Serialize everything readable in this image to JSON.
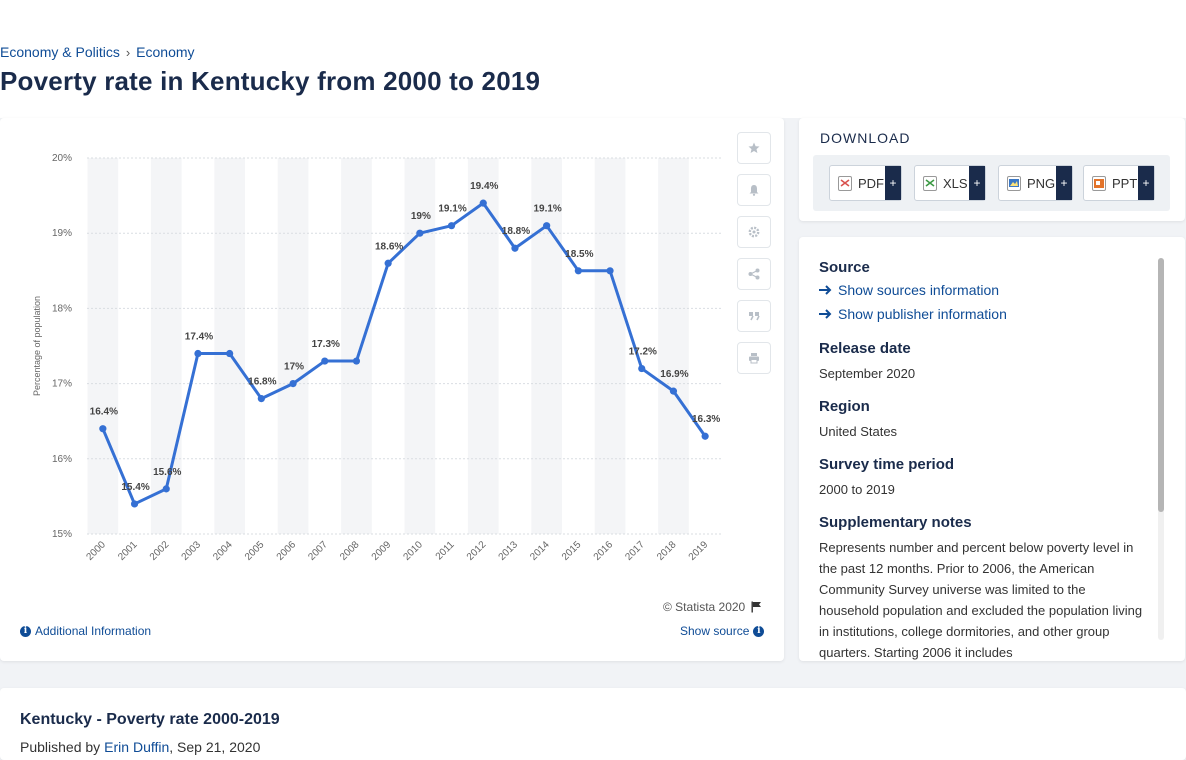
{
  "breadcrumb": [
    "Economy & Politics",
    "Economy"
  ],
  "page_title": "Poverty rate in Kentucky from 2000 to 2019",
  "chart_data": {
    "type": "line",
    "title": "",
    "xlabel": "",
    "ylabel": "Percentage of population",
    "ylim": [
      15,
      20
    ],
    "yticks": [
      "15%",
      "16%",
      "17%",
      "18%",
      "19%",
      "20%"
    ],
    "ytick_values": [
      15,
      16,
      17,
      18,
      19,
      20
    ],
    "categories": [
      "2000",
      "2001",
      "2002",
      "2003",
      "2004",
      "2005",
      "2006",
      "2007",
      "2008",
      "2009",
      "2010",
      "2011",
      "2012",
      "2013",
      "2014",
      "2015",
      "2016",
      "2017",
      "2018",
      "2019"
    ],
    "values": [
      16.4,
      15.4,
      15.6,
      17.4,
      17.4,
      16.8,
      17.0,
      17.3,
      17.3,
      18.6,
      19.0,
      19.1,
      19.4,
      18.8,
      19.1,
      18.5,
      18.5,
      17.2,
      16.9,
      16.3
    ],
    "data_labels": [
      "16.4%",
      "15.4%",
      "15.6%",
      "17.4%",
      "",
      "16.8%",
      "17%",
      "17.3%",
      "",
      "18.6%",
      "19%",
      "19.1%",
      "19.4%",
      "18.8%",
      "19.1%",
      "18.5%",
      "",
      "17.2%",
      "16.9%",
      "16.3%"
    ],
    "grid": true,
    "line_color": "#3570d4"
  },
  "toolbar": {
    "icons": [
      "star-icon",
      "bell-icon",
      "gear-icon",
      "share-icon",
      "quote-icon",
      "print-icon"
    ]
  },
  "footer": {
    "copyright": "© Statista 2020",
    "additional_info": "Additional Information",
    "show_source": "Show source"
  },
  "download": {
    "title": "DOWNLOAD",
    "buttons": [
      {
        "label": "PDF",
        "color": "#d9534f"
      },
      {
        "label": "XLS",
        "color": "#3c9a45"
      },
      {
        "label": "PNG",
        "color": "#3b78c4"
      },
      {
        "label": "PPT",
        "color": "#e3742b"
      }
    ],
    "plus": "+"
  },
  "info": {
    "source_label": "Source",
    "show_sources": "Show sources information",
    "show_publisher": "Show publisher information",
    "release_label": "Release date",
    "release_value": "September 2020",
    "region_label": "Region",
    "region_value": "United States",
    "period_label": "Survey time period",
    "period_value": "2000 to 2019",
    "notes_label": "Supplementary notes",
    "notes_value": "Represents number and percent below poverty level in the past 12 months. Prior to 2006, the American Community Survey universe was limited to the household population and excluded the population living in institutions, college dormitories, and other group quarters. Starting 2006 it includes"
  },
  "bottom": {
    "title": "Kentucky - Poverty rate 2000-2019",
    "published_prefix": "Published by",
    "author": "Erin Duffin",
    "date": ", Sep 21, 2020"
  }
}
